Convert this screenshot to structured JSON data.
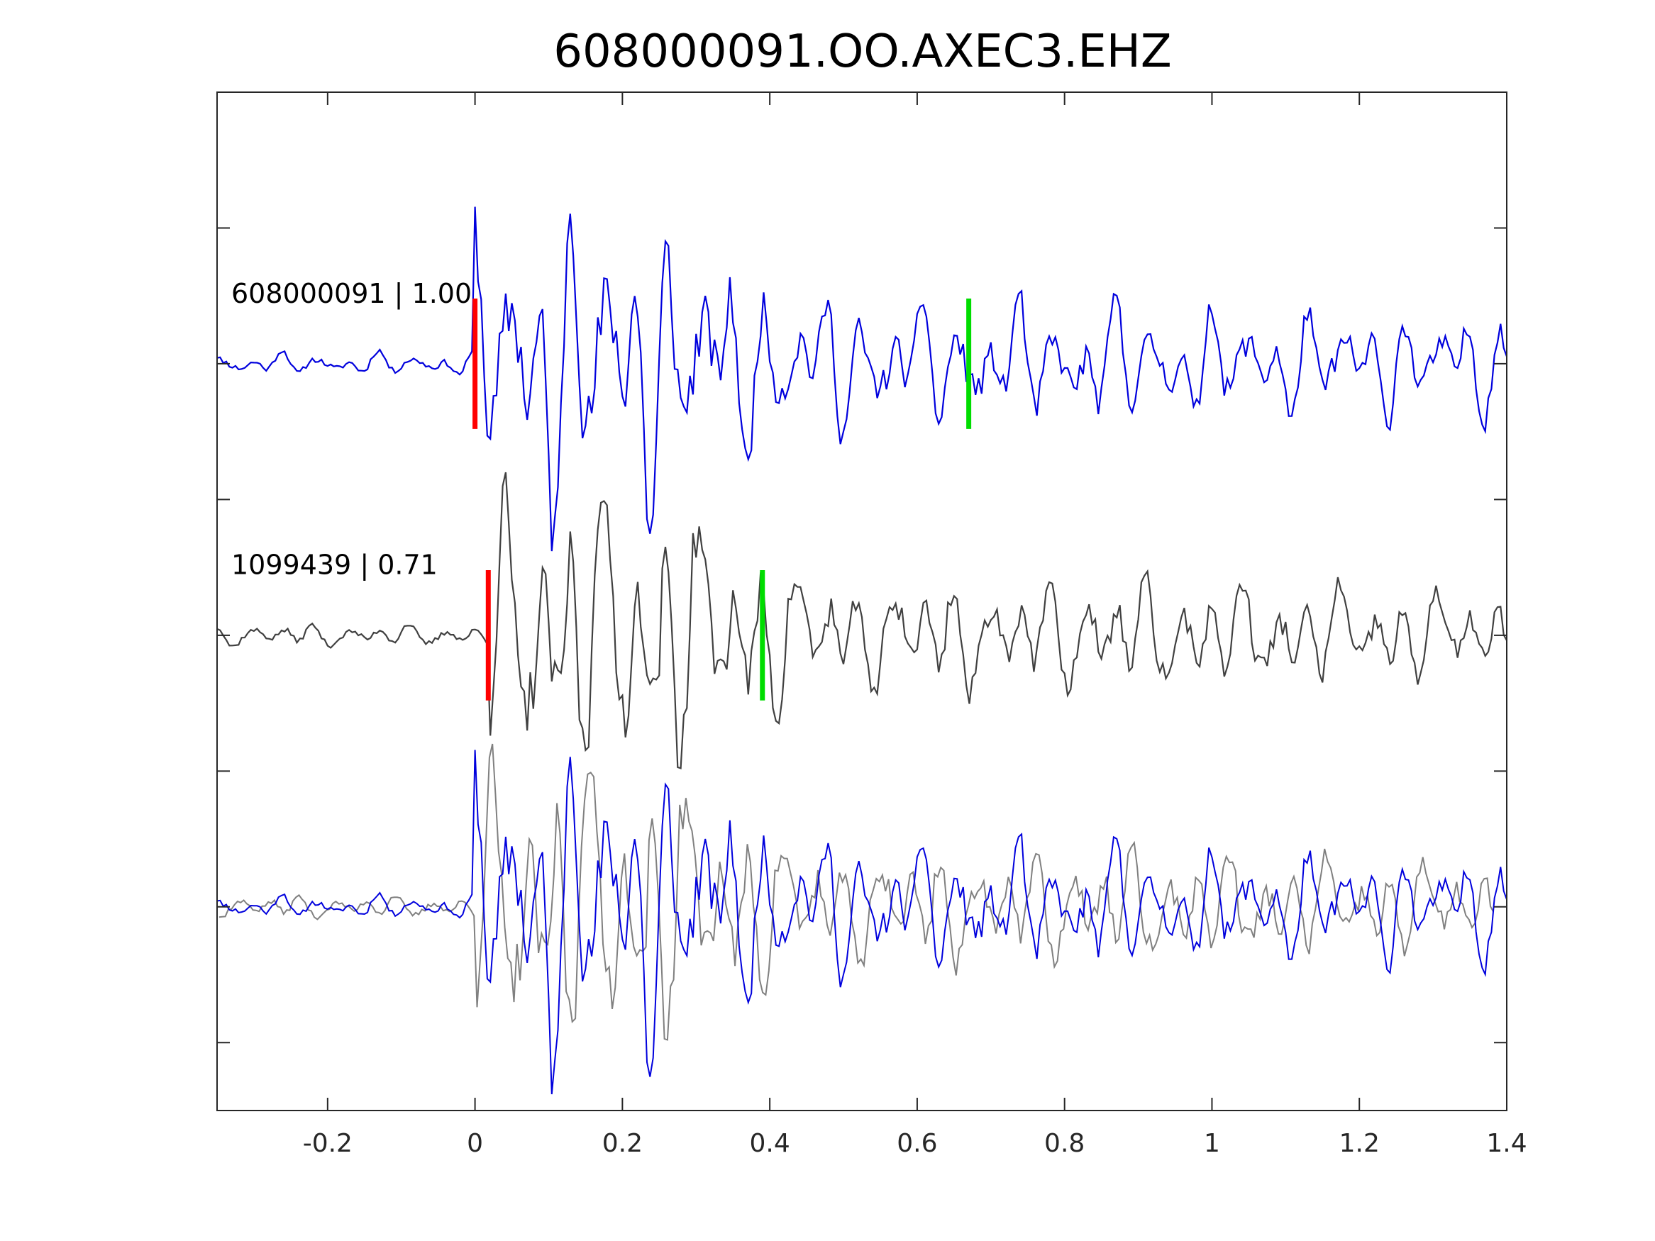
{
  "chart_data": {
    "type": "line",
    "title": "608000091.OO.AXEC3.EHZ",
    "xlabel": "",
    "ylabel": "",
    "xlim": [
      -0.35,
      1.4
    ],
    "xticks": [
      -0.2,
      0,
      0.2,
      0.4,
      0.6,
      0.8,
      1,
      1.2,
      1.4
    ],
    "xtick_labels": [
      "-0.2",
      "0",
      "0.2",
      "0.4",
      "0.6",
      "0.8",
      "1",
      "1.2",
      "1.4"
    ],
    "ylim": [
      -3.5,
      4.0
    ],
    "yticks": [
      -3,
      -2,
      -1,
      0,
      1,
      2,
      3
    ],
    "grid": false,
    "colors": {
      "primary": "#0000dd",
      "secondary": "#404040",
      "overlay": "#808080",
      "p_pick": "#ff0000",
      "s_pick": "#00dd00"
    },
    "traces": [
      {
        "label": "608000091 | 1.00",
        "offset": 2,
        "color": "#0000dd",
        "p_pick": 0.0,
        "s_pick": 0.67,
        "onset": 0.0,
        "seed": 11,
        "amp": 0.9
      },
      {
        "label": "1099439 | 0.71",
        "offset": 0,
        "color": "#404040",
        "p_pick": 0.018,
        "s_pick": 0.39,
        "onset": 0.018,
        "seed": 37,
        "amp": 0.85
      }
    ],
    "overlay_offset": -2
  }
}
